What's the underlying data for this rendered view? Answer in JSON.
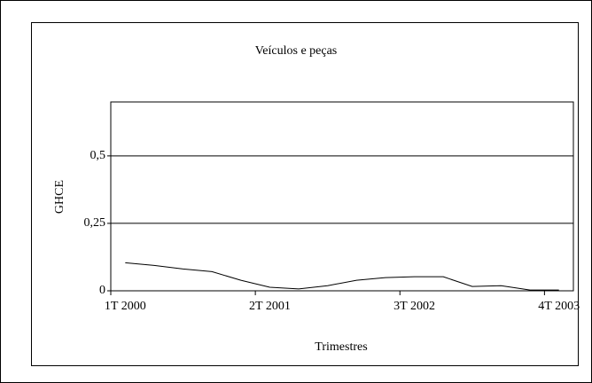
{
  "chart_data": {
    "type": "line",
    "title": "Veículos e peças",
    "x_label": "Trimestres",
    "y_label": "GHCE",
    "categories": [
      "1T 2000",
      null,
      null,
      null,
      null,
      "2T 2001",
      null,
      null,
      null,
      null,
      "3T 2002",
      null,
      null,
      null,
      null,
      "4T 2003"
    ],
    "series": [
      {
        "name": "GHCE",
        "color": "#000000",
        "values": [
          0.104,
          0.094,
          0.081,
          0.071,
          0.039,
          0.013,
          0.007,
          0.019,
          0.039,
          0.049,
          0.052,
          0.052,
          0.016,
          0.019,
          0.003,
          0.003
        ]
      }
    ],
    "ylim": [
      0,
      0.7
    ],
    "yticks": [
      0,
      {
        "value": 0.25,
        "label": "0,25"
      },
      {
        "value": 0.5,
        "label": "0,5"
      }
    ],
    "grid": true
  }
}
